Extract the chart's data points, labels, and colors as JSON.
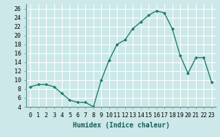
{
  "x": [
    0,
    1,
    2,
    3,
    4,
    5,
    6,
    7,
    8,
    9,
    10,
    11,
    12,
    13,
    14,
    15,
    16,
    17,
    18,
    19,
    20,
    21,
    22,
    23
  ],
  "y": [
    8.5,
    9.0,
    9.0,
    8.5,
    7.0,
    5.5,
    5.0,
    5.0,
    4.0,
    10.0,
    14.5,
    18.0,
    19.0,
    21.5,
    23.0,
    24.5,
    25.5,
    25.0,
    21.5,
    15.5,
    11.5,
    15.0,
    15.0,
    9.5
  ],
  "line_color": "#1a7a6a",
  "marker": "D",
  "marker_size": 2.0,
  "background_color": "#cce8e8",
  "grid_color": "#ffffff",
  "xlabel": "Humidex (Indice chaleur)",
  "ylim": [
    4,
    27
  ],
  "xlim": [
    -0.5,
    23.5
  ],
  "yticks": [
    4,
    6,
    8,
    10,
    12,
    14,
    16,
    18,
    20,
    22,
    24,
    26
  ],
  "xticks": [
    0,
    1,
    2,
    3,
    4,
    5,
    6,
    7,
    8,
    9,
    10,
    11,
    12,
    13,
    14,
    15,
    16,
    17,
    18,
    19,
    20,
    21,
    22,
    23
  ],
  "xtick_labels": [
    "0",
    "1",
    "2",
    "3",
    "4",
    "5",
    "6",
    "7",
    "8",
    "9",
    "10",
    "11",
    "12",
    "13",
    "14",
    "15",
    "16",
    "17",
    "18",
    "19",
    "20",
    "21",
    "22",
    "23"
  ],
  "xlabel_fontsize": 7.0,
  "tick_fontsize": 6.0,
  "linewidth": 1.0
}
